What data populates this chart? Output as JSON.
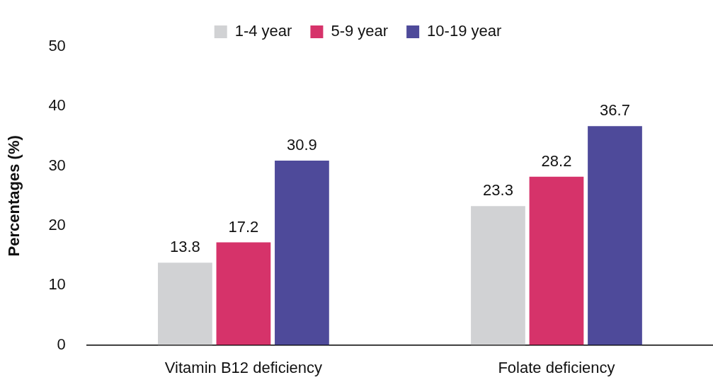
{
  "chart_data": {
    "type": "bar",
    "ylabel": "Percentages (%)",
    "categories": [
      "Vitamin B12 deficiency",
      "Folate deficiency"
    ],
    "series": [
      {
        "name": "1-4 year",
        "color": "#d1d2d4",
        "values": [
          13.8,
          23.3
        ]
      },
      {
        "name": "5-9 year",
        "color": "#d6336a",
        "values": [
          17.2,
          28.2
        ]
      },
      {
        "name": "10-19 year",
        "color": "#4e4a9a",
        "values": [
          30.9,
          36.7
        ]
      }
    ],
    "ylim": [
      0,
      50
    ],
    "yticks": [
      0,
      10,
      20,
      30,
      40,
      50
    ],
    "grid": false,
    "legend": "top",
    "data_labels": true
  }
}
